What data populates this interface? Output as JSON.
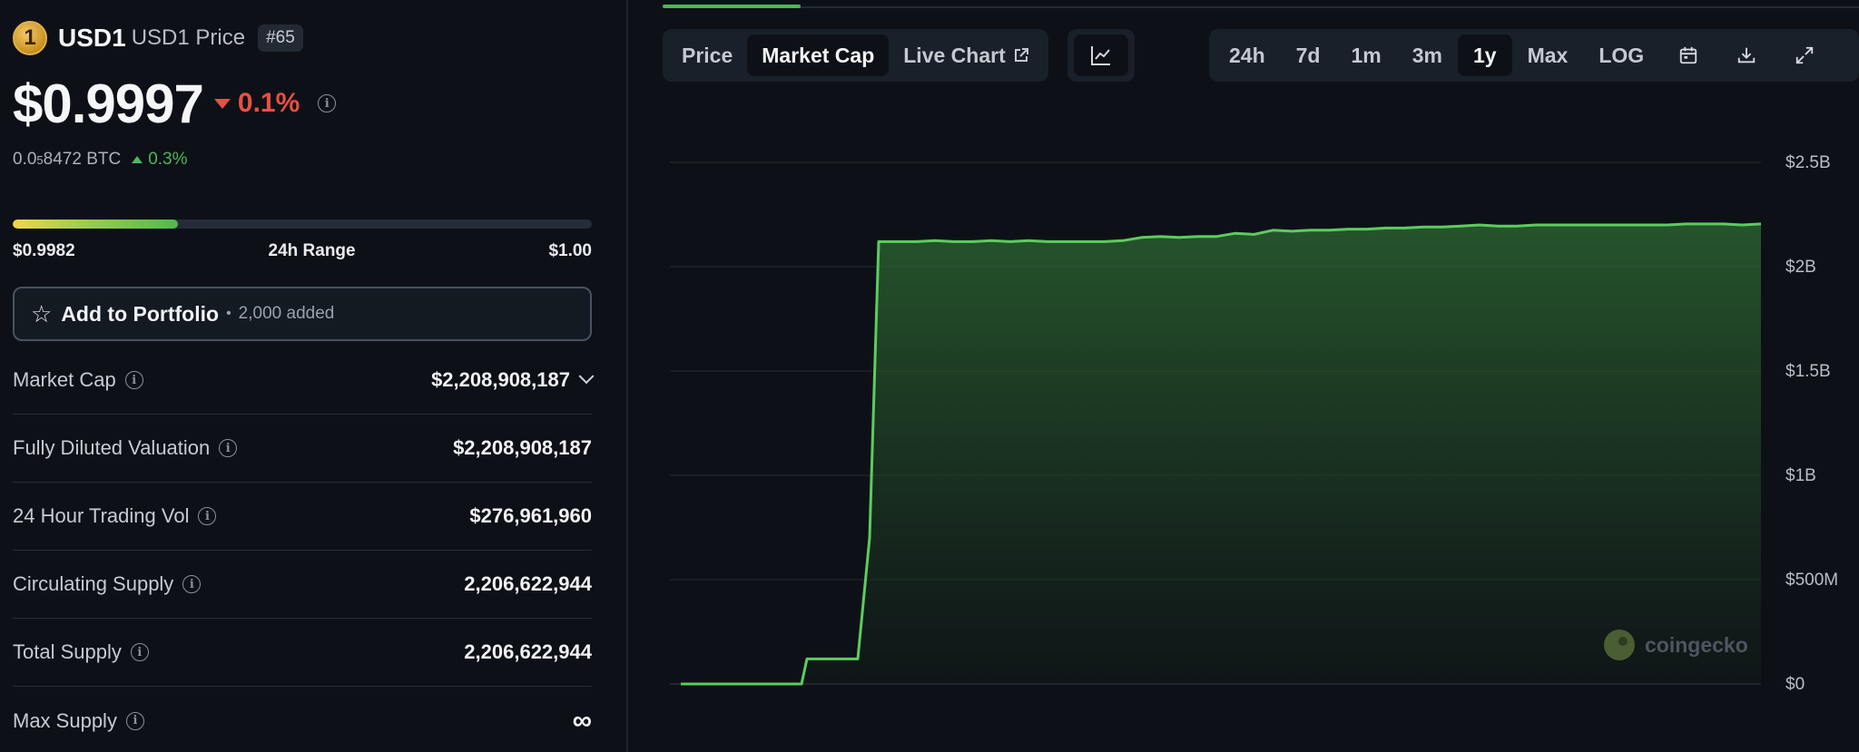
{
  "coin": {
    "logo_glyph": "1",
    "symbol": "USD1",
    "name": "USD1 Price",
    "rank": "#65",
    "price": "$0.9997",
    "change_24h": "0.1%",
    "btc_prefix": "0.0",
    "btc_sub": "5",
    "btc_rest": "8472 BTC",
    "btc_change": "0.3%"
  },
  "range": {
    "low": "$0.9982",
    "label": "24h Range",
    "high": "$1.00",
    "position_fraction": 0.285
  },
  "portfolio": {
    "label": "Add to Portfolio",
    "separator": "•",
    "count": "2,000 added"
  },
  "stats": [
    {
      "label": "Market Cap",
      "value": "$2,208,908,187",
      "has_chevron": true
    },
    {
      "label": "Fully Diluted Valuation",
      "value": "$2,208,908,187"
    },
    {
      "label": "24 Hour Trading Vol",
      "value": "$276,961,960"
    },
    {
      "label": "Circulating Supply",
      "value": "2,206,622,944"
    },
    {
      "label": "Total Supply",
      "value": "2,206,622,944"
    },
    {
      "label": "Max Supply",
      "value": "∞"
    }
  ],
  "chart_tabs": [
    {
      "label": "Price",
      "active": false
    },
    {
      "label": "Market Cap",
      "active": true
    },
    {
      "label": "Live Chart",
      "active": false,
      "external": true
    }
  ],
  "chart_type_icon": "line-chart-icon",
  "time_ranges": [
    {
      "label": "24h",
      "active": false
    },
    {
      "label": "7d",
      "active": false
    },
    {
      "label": "1m",
      "active": false
    },
    {
      "label": "3m",
      "active": false
    },
    {
      "label": "1y",
      "active": true
    },
    {
      "label": "Max",
      "active": false
    },
    {
      "label": "LOG",
      "active": false
    }
  ],
  "toolbar_icons": [
    "calendar-icon",
    "download-icon",
    "expand-icon"
  ],
  "watermark": "coingecko",
  "colors": {
    "background": "#0d1117",
    "line": "#5dcc5f",
    "positive": "#4eb856",
    "negative": "#ea4f44"
  },
  "chart_data": {
    "type": "area",
    "title": "",
    "xlabel": "",
    "ylabel": "",
    "ylim": [
      0,
      2.5
    ],
    "y_unit": "billion USD",
    "y_ticks": [
      {
        "value": 2.5,
        "label": "$2.5B"
      },
      {
        "value": 2.0,
        "label": "$2B"
      },
      {
        "value": 1.5,
        "label": "$1.5B"
      },
      {
        "value": 1.0,
        "label": "$1B"
      },
      {
        "value": 0.5,
        "label": "$500M"
      },
      {
        "value": 0,
        "label": "$0"
      }
    ],
    "grid": true,
    "series": [
      {
        "values": [
          0,
          0,
          0,
          0.12,
          0.12,
          0.12,
          0.7,
          2.12,
          2.12,
          2.12,
          2.125,
          2.12,
          2.12,
          2.125,
          2.12,
          2.125,
          2.12,
          2.12,
          2.12,
          2.12,
          2.125,
          2.14,
          2.145,
          2.14,
          2.145,
          2.145,
          2.16,
          2.155,
          2.175,
          2.17,
          2.175,
          2.175,
          2.18,
          2.18,
          2.185,
          2.185,
          2.19,
          2.19,
          2.195,
          2.2,
          2.195,
          2.195,
          2.2,
          2.2,
          2.2,
          2.2,
          2.2,
          2.2,
          2.2,
          2.2,
          2.205,
          2.205,
          2.205,
          2.2,
          2.205
        ]
      }
    ]
  }
}
